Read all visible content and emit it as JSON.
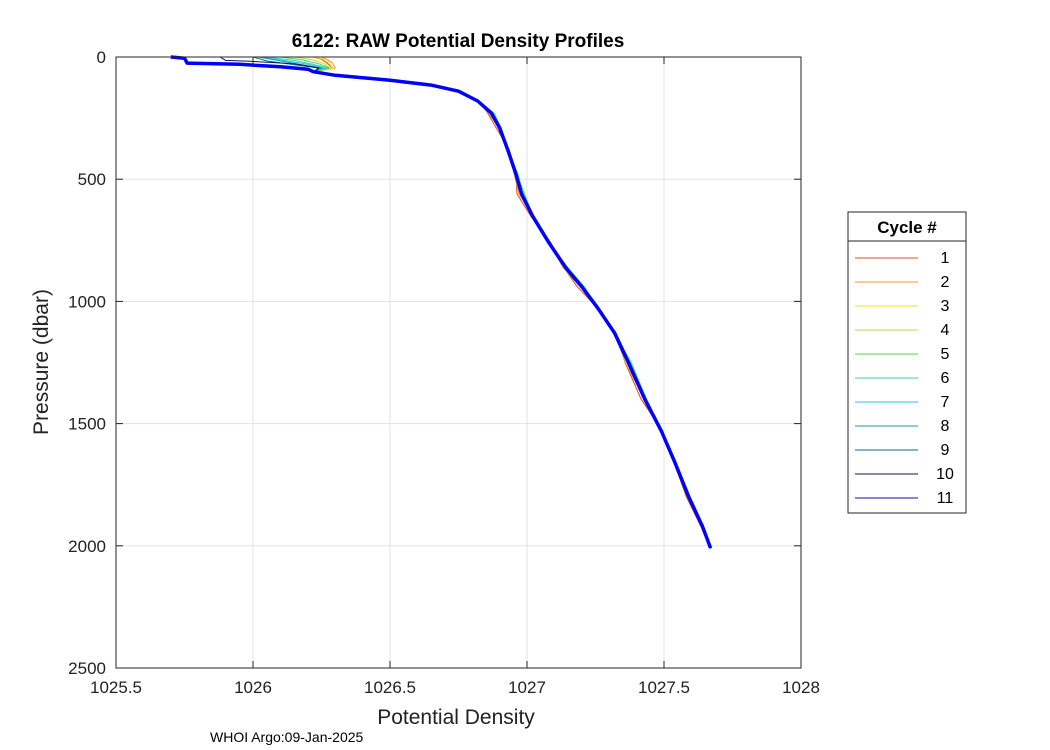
{
  "chart_data": {
    "type": "line",
    "title": "6122: RAW Potential Density Profiles",
    "xlabel": "Potential Density",
    "ylabel": "Pressure (dbar)",
    "xlim": [
      1025.5,
      1028
    ],
    "ylim": [
      0,
      2500
    ],
    "y_reversed": true,
    "grid": true,
    "xticks": [
      1025.5,
      1026,
      1026.5,
      1027,
      1027.5,
      1028
    ],
    "xtick_labels": [
      "1025.5",
      "1026",
      "1026.5",
      "1027",
      "1027.5",
      "1028"
    ],
    "yticks": [
      0,
      500,
      1000,
      1500,
      2000,
      2500
    ],
    "ytick_labels": [
      "0",
      "500",
      "1000",
      "1500",
      "2000",
      "2500"
    ],
    "legend": {
      "title": "Cycle #",
      "placement": "right-outside"
    },
    "series": [
      {
        "name": "1",
        "color": "#e8481f",
        "surface": [
          [
            1026.22,
            0
          ],
          [
            1026.25,
            10
          ],
          [
            1026.27,
            25
          ],
          [
            1026.29,
            45
          ]
        ],
        "offset": -0.005,
        "wiggle": 0.012
      },
      {
        "name": "2",
        "color": "#f39a12",
        "surface": [
          [
            1026.25,
            0
          ],
          [
            1026.27,
            10
          ],
          [
            1026.29,
            25
          ],
          [
            1026.3,
            45
          ]
        ],
        "offset": -0.003,
        "wiggle": 0.008
      },
      {
        "name": "3",
        "color": "#f2e414",
        "surface": [
          [
            1026.22,
            0
          ],
          [
            1026.26,
            10
          ],
          [
            1026.28,
            28
          ],
          [
            1026.29,
            45
          ]
        ],
        "offset": 0.0,
        "wiggle": 0.006
      },
      {
        "name": "4",
        "color": "#b6e02a",
        "surface": [
          [
            1026.15,
            0
          ],
          [
            1026.22,
            12
          ],
          [
            1026.26,
            28
          ],
          [
            1026.28,
            45
          ]
        ],
        "offset": 0.002,
        "wiggle": 0.006
      },
      {
        "name": "5",
        "color": "#52d64a",
        "surface": [
          [
            1026.1,
            0
          ],
          [
            1026.18,
            12
          ],
          [
            1026.24,
            28
          ],
          [
            1026.28,
            45
          ]
        ],
        "offset": 0.004,
        "wiggle": 0.007
      },
      {
        "name": "6",
        "color": "#2ed9b8",
        "surface": [
          [
            1026.05,
            0
          ],
          [
            1026.15,
            14
          ],
          [
            1026.22,
            30
          ],
          [
            1026.27,
            45
          ]
        ],
        "offset": 0.003,
        "wiggle": 0.005
      },
      {
        "name": "7",
        "color": "#20c9e6",
        "surface": [
          [
            1026.03,
            0
          ],
          [
            1026.12,
            15
          ],
          [
            1026.2,
            30
          ],
          [
            1026.26,
            45
          ]
        ],
        "offset": 0.001,
        "wiggle": 0.004
      },
      {
        "name": "8",
        "color": "#159ab0",
        "surface": [
          [
            1026.02,
            0
          ],
          [
            1026.1,
            16
          ],
          [
            1026.18,
            32
          ],
          [
            1026.25,
            45
          ]
        ],
        "offset": 0.0,
        "wiggle": 0.004
      },
      {
        "name": "9",
        "color": "#0f6a9a",
        "surface": [
          [
            1026.0,
            0
          ],
          [
            1026.05,
            16
          ],
          [
            1026.15,
            32
          ],
          [
            1026.24,
            45
          ]
        ],
        "offset": -0.001,
        "wiggle": 0.003
      },
      {
        "name": "10",
        "color": "#071a55",
        "surface": [
          [
            1025.88,
            0
          ],
          [
            1025.9,
            14
          ],
          [
            1026.0,
            18
          ],
          [
            1026.15,
            28
          ],
          [
            1026.24,
            45
          ]
        ],
        "offset": 0.0,
        "wiggle": 0.003
      },
      {
        "name": "11",
        "color": "#0d0db0",
        "surface": [
          [
            1025.7,
            0
          ],
          [
            1025.75,
            5
          ],
          [
            1025.76,
            25
          ],
          [
            1025.95,
            30
          ],
          [
            1026.1,
            40
          ],
          [
            1026.2,
            50
          ]
        ],
        "offset": 0.0,
        "wiggle": 0.0,
        "highlight_color": "#0000ff"
      }
    ],
    "common_profile": [
      [
        1026.22,
        60
      ],
      [
        1026.3,
        75
      ],
      [
        1026.5,
        95
      ],
      [
        1026.65,
        115
      ],
      [
        1026.75,
        140
      ],
      [
        1026.82,
        180
      ],
      [
        1026.87,
        230
      ],
      [
        1026.9,
        290
      ],
      [
        1026.93,
        380
      ],
      [
        1026.96,
        480
      ],
      [
        1026.98,
        560
      ],
      [
        1027.02,
        650
      ],
      [
        1027.08,
        760
      ],
      [
        1027.14,
        860
      ],
      [
        1027.2,
        940
      ],
      [
        1027.26,
        1030
      ],
      [
        1027.32,
        1130
      ],
      [
        1027.37,
        1250
      ],
      [
        1027.43,
        1400
      ],
      [
        1027.49,
        1530
      ],
      [
        1027.54,
        1660
      ],
      [
        1027.59,
        1800
      ],
      [
        1027.64,
        1920
      ],
      [
        1027.67,
        2010
      ]
    ]
  },
  "footer": "WHOI Argo:09-Jan-2025"
}
